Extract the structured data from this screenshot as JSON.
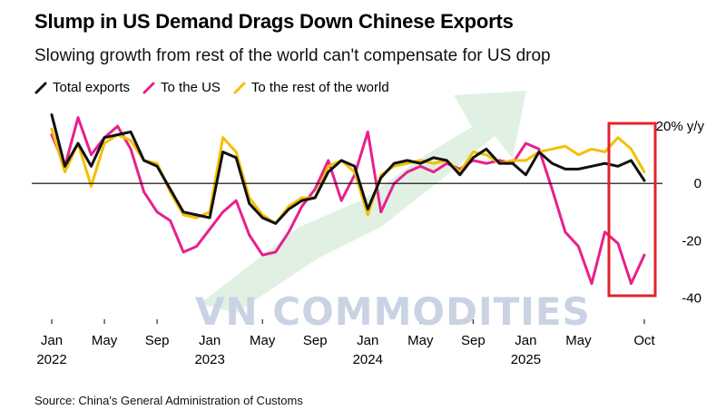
{
  "title": "Slump in US Demand Drags Down Chinese Exports",
  "subtitle": "Slowing growth from rest of the world can't compensate for US drop",
  "source": "Source: China's General Administration of Customs",
  "watermark": "VN COMMODITIES",
  "colors": {
    "total": "#111111",
    "us": "#e8208c",
    "rest": "#f2c000",
    "highlight_box": "#e0242b",
    "zero_line": "#000000",
    "watermark_arrow": "#d6ecd9"
  },
  "legend": [
    {
      "key": "total",
      "label": "Total exports"
    },
    {
      "key": "us",
      "label": "To the US"
    },
    {
      "key": "rest",
      "label": "To the rest of the world"
    }
  ],
  "chart_data": {
    "type": "line",
    "title": "Slump in US Demand Drags Down Chinese Exports",
    "ylabel": "20% y/y",
    "ylim": [
      -44,
      27
    ],
    "y_ticks": [
      {
        "value": 20,
        "label": "20% y/y"
      },
      {
        "value": 0,
        "label": "0"
      },
      {
        "value": -20,
        "label": "-20"
      },
      {
        "value": -40,
        "label": "-40"
      }
    ],
    "x_ticks": [
      {
        "index": 0,
        "month": "Jan",
        "year": "2022"
      },
      {
        "index": 4,
        "month": "May",
        "year": ""
      },
      {
        "index": 8,
        "month": "Sep",
        "year": ""
      },
      {
        "index": 12,
        "month": "Jan",
        "year": "2023"
      },
      {
        "index": 16,
        "month": "May",
        "year": ""
      },
      {
        "index": 20,
        "month": "Sep",
        "year": ""
      },
      {
        "index": 24,
        "month": "Jan",
        "year": "2024"
      },
      {
        "index": 28,
        "month": "May",
        "year": ""
      },
      {
        "index": 32,
        "month": "Sep",
        "year": ""
      },
      {
        "index": 36,
        "month": "Jan",
        "year": "2025"
      },
      {
        "index": 40,
        "month": "May",
        "year": ""
      },
      {
        "index": 45,
        "month": "Oct",
        "year": ""
      }
    ],
    "x_range": [
      0,
      45
    ],
    "series": [
      {
        "name": "Total exports",
        "key": "total",
        "values": [
          24,
          6,
          14,
          6,
          16,
          17,
          18,
          8,
          6,
          -2,
          -10,
          -11,
          -12,
          11,
          9,
          -7,
          -12,
          -14,
          -9,
          -6,
          -5,
          4,
          8,
          6,
          -9,
          2,
          7,
          8,
          7,
          9,
          8,
          3,
          9,
          12,
          7,
          7,
          3,
          11,
          7,
          5,
          5,
          6,
          7,
          6,
          8,
          1
        ]
      },
      {
        "name": "To the US",
        "key": "us",
        "values": [
          17,
          6,
          23,
          10,
          16,
          20,
          12,
          -3,
          -10,
          -13,
          -24,
          -22,
          -16,
          -10,
          -6,
          -18,
          -25,
          -24,
          -17,
          -8,
          -2,
          8,
          -6,
          3,
          18,
          -10,
          0,
          4,
          6,
          4,
          7,
          5,
          8,
          7,
          8,
          7,
          14,
          12,
          -2,
          -17,
          -22,
          -35,
          -17,
          -21,
          -35,
          -25
        ]
      },
      {
        "name": "To the rest of the world",
        "key": "rest",
        "values": [
          19,
          4,
          14,
          -1,
          14,
          17,
          15,
          8,
          7,
          -3,
          -11,
          -12,
          -10,
          16,
          11,
          -5,
          -11,
          -14,
          -8,
          -5,
          -5,
          6,
          8,
          4,
          -11,
          3,
          6,
          7,
          8,
          7,
          8,
          4,
          11,
          10,
          7,
          8,
          8,
          11,
          12,
          13,
          10,
          12,
          11,
          16,
          12,
          4
        ]
      }
    ],
    "annotations": [
      {
        "type": "box",
        "from_index": 43,
        "to_index": 45,
        "note": "latest months highlighted"
      }
    ]
  }
}
